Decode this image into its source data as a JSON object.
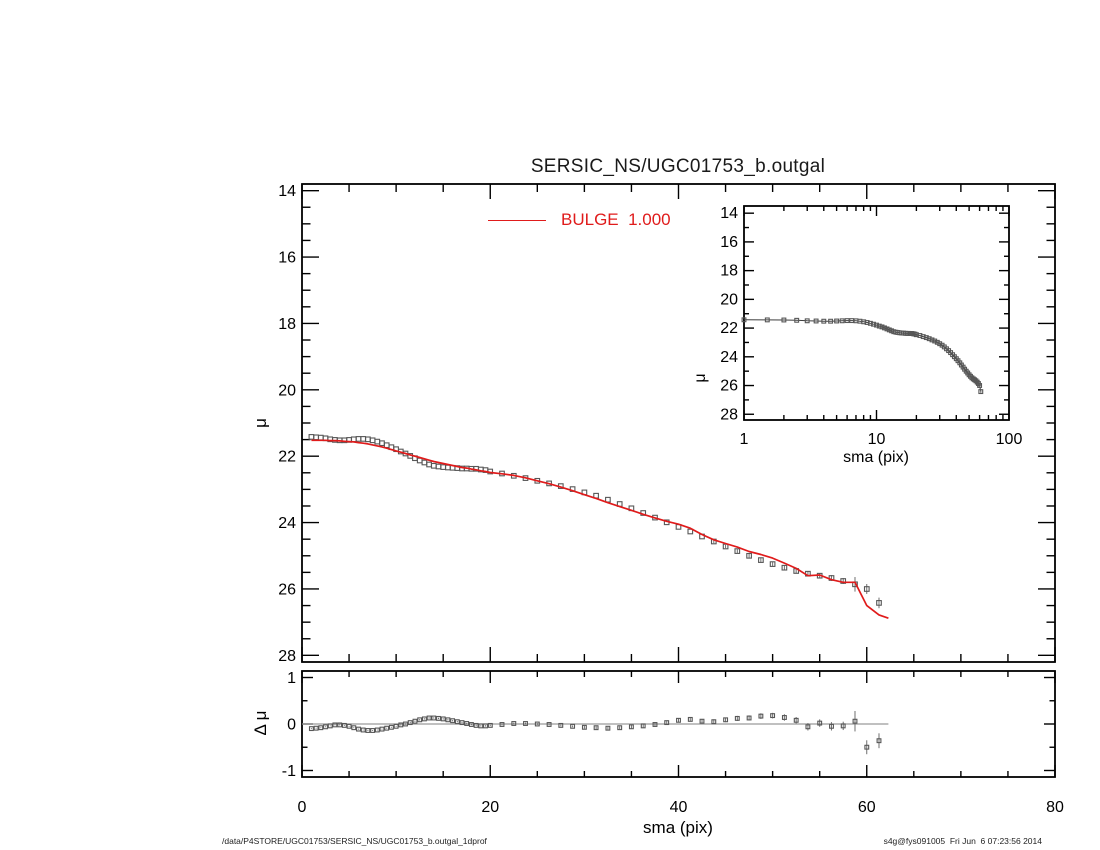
{
  "page": {
    "title": "SERSIC_NS/UGC01753_b.outgal",
    "footer_left": "/data/P4STORE/UGC01753/SERSIC_NS/UGC01753_b.outgal_1dprof",
    "footer_right": "s4g@fys091005  Fri Jun  6 07:23:56 2014"
  },
  "legend": {
    "label": "BULGE  1.000"
  },
  "colors": {
    "model": "#e01b1b",
    "data_marker": "#575757",
    "error_bar": "#6e6e6e",
    "zero_line": "#9a9a9a",
    "axis": "#000000",
    "text": "#000000"
  },
  "chart_data": {
    "type": "scatter+line",
    "title": "SERSIC_NS/UGC01753_b.outgal",
    "description": "Surface brightness profile mu vs semi-major axis with Sersic bulge model fit and residuals",
    "shared_series": {
      "sma": [
        1,
        1.5,
        2,
        2.5,
        3,
        3.5,
        4,
        4.5,
        5,
        5.5,
        6,
        6.5,
        7,
        7.5,
        8,
        8.5,
        9,
        9.5,
        10,
        10.5,
        11,
        11.5,
        12,
        12.5,
        13,
        13.5,
        14,
        14.5,
        15,
        15.5,
        16,
        16.5,
        17,
        17.5,
        18,
        18.5,
        19,
        19.5,
        20,
        21.25,
        22.5,
        23.75,
        25,
        26.25,
        27.5,
        28.75,
        30,
        31.25,
        32.5,
        33.75,
        35,
        36.25,
        37.5,
        38.75,
        40,
        41.25,
        42.5,
        43.75,
        45,
        46.25,
        47.5,
        48.75,
        50,
        51.25,
        52.5,
        53.75,
        55,
        56.25,
        57.5,
        58.75,
        60,
        61.3
      ],
      "mu_data": [
        21.42,
        21.43,
        21.44,
        21.46,
        21.49,
        21.51,
        21.52,
        21.52,
        21.51,
        21.49,
        21.48,
        21.48,
        21.49,
        21.52,
        21.56,
        21.61,
        21.67,
        21.73,
        21.79,
        21.86,
        21.92,
        21.99,
        22.06,
        22.13,
        22.19,
        22.25,
        22.29,
        22.31,
        22.33,
        22.34,
        22.35,
        22.36,
        22.37,
        22.37,
        22.38,
        22.38,
        22.4,
        22.42,
        22.46,
        22.52,
        22.59,
        22.66,
        22.74,
        22.82,
        22.9,
        22.99,
        23.09,
        23.19,
        23.31,
        23.44,
        23.57,
        23.71,
        23.85,
        23.99,
        24.13,
        24.27,
        24.42,
        24.57,
        24.72,
        24.86,
        25.0,
        25.13,
        25.25,
        25.36,
        25.46,
        25.54,
        25.6,
        25.67,
        25.76,
        25.86,
        26.0,
        26.42
      ],
      "mu_err": [
        0.01,
        0.01,
        0.01,
        0.01,
        0.01,
        0.01,
        0.01,
        0.01,
        0.01,
        0.01,
        0.01,
        0.01,
        0.01,
        0.01,
        0.01,
        0.01,
        0.01,
        0.01,
        0.01,
        0.015,
        0.015,
        0.015,
        0.015,
        0.015,
        0.015,
        0.015,
        0.015,
        0.015,
        0.015,
        0.015,
        0.015,
        0.015,
        0.015,
        0.015,
        0.015,
        0.015,
        0.015,
        0.015,
        0.015,
        0.02,
        0.02,
        0.02,
        0.02,
        0.02,
        0.02,
        0.02,
        0.03,
        0.03,
        0.03,
        0.03,
        0.035,
        0.035,
        0.035,
        0.04,
        0.04,
        0.045,
        0.045,
        0.05,
        0.05,
        0.055,
        0.055,
        0.06,
        0.06,
        0.07,
        0.07,
        0.08,
        0.08,
        0.09,
        0.09,
        0.22,
        0.15,
        0.16
      ],
      "mu_model": [
        21.52,
        21.52,
        21.52,
        21.52,
        21.53,
        21.53,
        21.54,
        21.55,
        21.56,
        21.57,
        21.59,
        21.61,
        21.63,
        21.66,
        21.69,
        21.72,
        21.76,
        21.8,
        21.84,
        21.88,
        21.92,
        21.96,
        22.0,
        22.04,
        22.08,
        22.12,
        22.16,
        22.19,
        22.22,
        22.25,
        22.28,
        22.31,
        22.34,
        22.36,
        22.39,
        22.41,
        22.44,
        22.46,
        22.49,
        22.53,
        22.58,
        22.65,
        22.74,
        22.83,
        22.93,
        23.04,
        23.16,
        23.27,
        23.4,
        23.52,
        23.63,
        23.75,
        23.86,
        23.96,
        24.05,
        24.17,
        24.36,
        24.52,
        24.63,
        24.74,
        24.87,
        24.96,
        25.07,
        25.22,
        25.38,
        25.6,
        25.58,
        25.72,
        25.8,
        25.8,
        26.5,
        26.78
      ],
      "residual_dmu": [
        -0.1,
        -0.09,
        -0.08,
        -0.06,
        -0.04,
        -0.02,
        -0.02,
        -0.03,
        -0.05,
        -0.08,
        -0.11,
        -0.13,
        -0.14,
        -0.14,
        -0.13,
        -0.11,
        -0.09,
        -0.07,
        -0.05,
        -0.02,
        0.0,
        0.03,
        0.06,
        0.09,
        0.11,
        0.13,
        0.13,
        0.12,
        0.11,
        0.09,
        0.07,
        0.05,
        0.03,
        0.01,
        -0.01,
        -0.03,
        -0.04,
        -0.04,
        -0.03,
        -0.01,
        0.01,
        0.01,
        0.0,
        -0.01,
        -0.03,
        -0.05,
        -0.07,
        -0.08,
        -0.09,
        -0.08,
        -0.06,
        -0.04,
        -0.01,
        0.03,
        0.08,
        0.1,
        0.06,
        0.05,
        0.09,
        0.12,
        0.13,
        0.17,
        0.18,
        0.14,
        0.08,
        -0.06,
        0.02,
        -0.05,
        -0.04,
        0.06,
        -0.5,
        -0.36
      ]
    },
    "model_extension": {
      "sma": [
        62.3
      ],
      "mu": [
        26.88
      ]
    },
    "zero_line_extent": [
      0,
      62.3
    ],
    "panels": {
      "main": {
        "xlabel": "sma (pix)",
        "ylabel": "μ",
        "xlim": [
          0,
          80
        ],
        "ylim": [
          14,
          28
        ],
        "y_reversed": true,
        "xticks": [
          0,
          20,
          40,
          60,
          80
        ],
        "yticks": [
          14,
          16,
          18,
          20,
          22,
          24,
          26,
          28
        ],
        "legend_label": "BULGE  1.000"
      },
      "inset": {
        "xlabel": "sma (pix)",
        "ylabel": "μ",
        "x_log": true,
        "xlim": [
          1,
          100
        ],
        "ylim": [
          14,
          28
        ],
        "y_reversed": true,
        "xticks": [
          1,
          10,
          100
        ],
        "yticks": [
          14,
          16,
          18,
          20,
          22,
          24,
          26,
          28
        ]
      },
      "residual": {
        "xlabel": "sma (pix)",
        "ylabel": "Δ μ",
        "xlim": [
          0,
          80
        ],
        "ylim": [
          -1,
          1
        ],
        "xticks": [
          0,
          20,
          40,
          60,
          80
        ],
        "yticks": [
          1,
          0,
          -1
        ]
      }
    }
  }
}
